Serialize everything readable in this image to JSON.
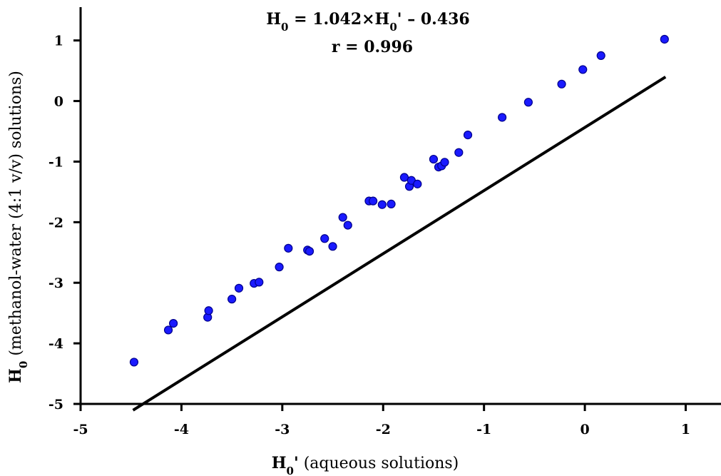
{
  "chart_data": {
    "type": "scatter",
    "xlabel": {
      "symbol": "H",
      "subscript": "0",
      "prime": "'",
      "text": " (aqueous solutions)"
    },
    "ylabel": {
      "symbol": "H",
      "subscript": "0",
      "text": " (methanol-water (4:1 v/v) solutions)"
    },
    "xlim": [
      -5,
      1.35
    ],
    "ylim": [
      -5,
      1.55
    ],
    "xticks": [
      -5,
      -4,
      -3,
      -2,
      -1,
      0,
      1
    ],
    "yticks": [
      -5,
      -4,
      -3,
      -2,
      -1,
      0,
      1
    ],
    "xtick_labels": [
      "-5",
      "-4",
      "-3",
      "-2",
      "-1",
      "0",
      "1"
    ],
    "ytick_labels": [
      "-5",
      "-4",
      "-3",
      "-2",
      "-1",
      "0",
      "1"
    ],
    "grid": false,
    "marker_color": "#1a1aff",
    "marker_edge_color": "#00008b",
    "fit_line_color": "#000000",
    "annotations": {
      "equation": {
        "lhs_symbol": "H",
        "lhs_subscript": "0",
        "middle": " = 1.042×H",
        "rhs_subscript": "0",
        "rhs_tail": "' – 0.436"
      },
      "r_text": "r = 0.996"
    },
    "fit": {
      "slope": 1.042,
      "intercept": -0.436,
      "x_range": [
        -4.48,
        0.8
      ]
    },
    "series": [
      {
        "x": [
          -4.47,
          -4.13,
          -4.08,
          -3.74,
          -3.73,
          -3.5,
          -3.43,
          -3.28,
          -3.23,
          -3.03,
          -2.94,
          -2.75,
          -2.73,
          -2.58,
          -2.5,
          -2.4,
          -2.35,
          -2.14,
          -2.1,
          -2.01,
          -1.92,
          -1.79,
          -1.74,
          -1.72,
          -1.66,
          -1.5,
          -1.45,
          -1.42,
          -1.39,
          -1.25,
          -1.16,
          -0.82,
          -0.56,
          -0.23,
          -0.02,
          0.16,
          0.79
        ],
        "y": [
          -4.31,
          -3.78,
          -3.67,
          -3.57,
          -3.46,
          -3.27,
          -3.09,
          -3.01,
          -2.99,
          -2.74,
          -2.43,
          -2.46,
          -2.48,
          -2.27,
          -2.4,
          -1.92,
          -2.05,
          -1.65,
          -1.65,
          -1.71,
          -1.7,
          -1.26,
          -1.41,
          -1.31,
          -1.37,
          -0.96,
          -1.09,
          -1.07,
          -1.01,
          -0.85,
          -0.56,
          -0.27,
          -0.02,
          0.28,
          0.52,
          0.75,
          1.02
        ]
      }
    ]
  }
}
